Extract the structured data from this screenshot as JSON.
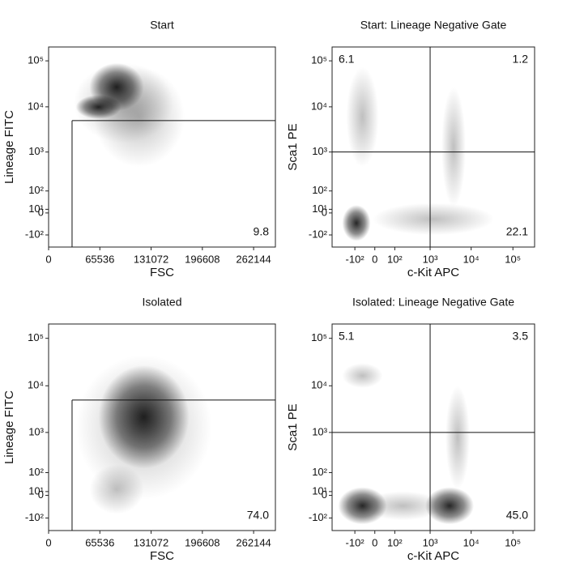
{
  "chart_data": [
    {
      "type": "scatter",
      "title": "Start",
      "x_label": "FSC",
      "y_label": "Lineage FITC",
      "xscale": "linear",
      "yscale": "biexponential",
      "xlim": [
        0,
        290000
      ],
      "ylim": [
        -225,
        200000
      ],
      "xticks": [
        0,
        65536,
        131072,
        196608,
        262144
      ],
      "yticks": [
        {
          "value": 100000,
          "label": "10⁵"
        },
        {
          "value": 10000,
          "label": "10⁴"
        },
        {
          "value": 1000,
          "label": "10³"
        },
        {
          "value": 100,
          "label": "10²"
        },
        {
          "value": 10,
          "label": "10¹"
        },
        0,
        {
          "value": -100,
          "label": "-10²"
        }
      ],
      "gate": {
        "x_min": 30000,
        "y_max": 5000
      },
      "gate_percentages": [
        {
          "corner": "bottom-right",
          "value": 9.8
        }
      ]
    },
    {
      "type": "scatter",
      "title": "Start: Lineage Negative Gate",
      "x_label": "c-Kit APC",
      "y_label": "Sca1 PE",
      "xscale": "biexponential",
      "yscale": "biexponential",
      "xlim": [
        -475,
        330000
      ],
      "ylim": [
        -225,
        200000
      ],
      "xticks": [
        {
          "value": -100,
          "label": "-10²"
        },
        0,
        {
          "value": 100,
          "label": "10²"
        },
        {
          "value": 1000,
          "label": "10³"
        },
        {
          "value": 10000,
          "label": "10⁴"
        },
        {
          "value": 100000,
          "label": "10⁵"
        }
      ],
      "yticks": [
        {
          "value": 100000,
          "label": "10⁵"
        },
        {
          "value": 10000,
          "label": "10⁴"
        },
        {
          "value": 1000,
          "label": "10³"
        },
        {
          "value": 100,
          "label": "10²"
        },
        {
          "value": 10,
          "label": "10¹"
        },
        0,
        {
          "value": -100,
          "label": "-10²"
        }
      ],
      "quadrant": {
        "x": 1000,
        "y": 1000
      },
      "gate_percentages": [
        {
          "corner": "top-left",
          "value": 6.1
        },
        {
          "corner": "top-right",
          "value": 1.2
        },
        {
          "corner": "bottom-right",
          "value": 22.1
        }
      ]
    },
    {
      "type": "scatter",
      "title": "Isolated",
      "x_label": "FSC",
      "y_label": "Lineage FITC",
      "xscale": "linear",
      "yscale": "biexponential",
      "xlim": [
        0,
        290000
      ],
      "ylim": [
        -225,
        200000
      ],
      "xticks": [
        0,
        65536,
        131072,
        196608,
        262144
      ],
      "yticks": [
        {
          "value": 100000,
          "label": "10⁵"
        },
        {
          "value": 10000,
          "label": "10⁴"
        },
        {
          "value": 1000,
          "label": "10³"
        },
        {
          "value": 100,
          "label": "10²"
        },
        {
          "value": 10,
          "label": "10¹"
        },
        0,
        {
          "value": -100,
          "label": "-10²"
        }
      ],
      "gate": {
        "x_min": 30000,
        "y_max": 5000
      },
      "gate_percentages": [
        {
          "corner": "bottom-right",
          "value": 74,
          "label": "74.0"
        }
      ]
    },
    {
      "type": "scatter",
      "title": "Isolated: Lineage Negative Gate",
      "x_label": "c-Kit APC",
      "y_label": "Sca1 PE",
      "xscale": "biexponential",
      "yscale": "biexponential",
      "xlim": [
        -475,
        330000
      ],
      "ylim": [
        -225,
        200000
      ],
      "xticks": [
        {
          "value": -100,
          "label": "-10²"
        },
        0,
        {
          "value": 100,
          "label": "10²"
        },
        {
          "value": 1000,
          "label": "10³"
        },
        {
          "value": 10000,
          "label": "10⁴"
        },
        {
          "value": 100000,
          "label": "10⁵"
        }
      ],
      "yticks": [
        {
          "value": 100000,
          "label": "10⁵"
        },
        {
          "value": 10000,
          "label": "10⁴"
        },
        {
          "value": 1000,
          "label": "10³"
        },
        {
          "value": 100,
          "label": "10²"
        },
        {
          "value": 10,
          "label": "10¹"
        },
        0,
        {
          "value": -100,
          "label": "-10²"
        }
      ],
      "quadrant": {
        "x": 1000,
        "y": 1000
      },
      "gate_percentages": [
        {
          "corner": "top-left",
          "value": 5.1
        },
        {
          "corner": "top-right",
          "value": 3.5
        },
        {
          "corner": "bottom-right",
          "value": 45,
          "label": "45.0"
        }
      ]
    }
  ]
}
